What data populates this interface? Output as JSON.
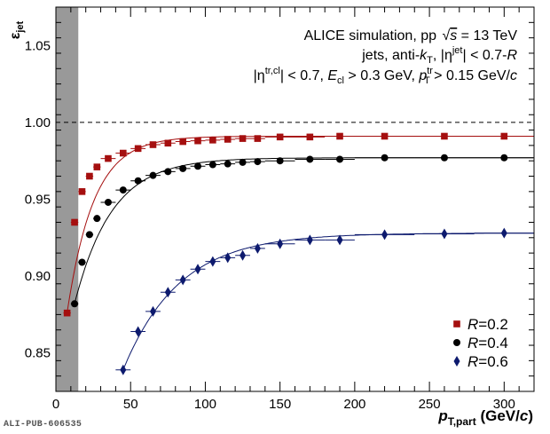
{
  "figure_tag": "ALI-PUB-606535",
  "annotations": {
    "line1": "ALICE simulation, pp √s = 13 TeV",
    "line2": "jets, anti-kT, |ηjet| < 0.7-R",
    "line3": "|ηtr,cl| < 0.7, Ecl > 0.3 GeV, pTtr > 0.15 GeV/c"
  },
  "chart_data": {
    "type": "scatter",
    "ylabel": "εjet",
    "xlabel": "pT,part (GeV/c)",
    "xlim": [
      0,
      320
    ],
    "ylim": [
      0.825,
      1.075
    ],
    "x_ticks": [
      0,
      50,
      100,
      150,
      200,
      250,
      300
    ],
    "y_ticks": [
      0.85,
      0.9,
      0.95,
      1.0,
      1.05
    ],
    "y_tick_labels": [
      "0.85",
      "0.90",
      "0.95",
      "1.00",
      "1.05"
    ],
    "reference_line": 1.0,
    "shaded_region": [
      0,
      15
    ],
    "legend_position": "bottom-right",
    "series": [
      {
        "name": "R=0.2",
        "marker": "square",
        "color": "#a50f0f",
        "x": [
          7.5,
          12.5,
          17.5,
          22.5,
          27.5,
          35,
          45,
          55,
          65,
          75,
          85,
          95,
          105,
          115,
          125,
          135,
          150,
          170,
          190,
          220,
          260,
          300
        ],
        "x_halfwidth": [
          2.5,
          2.5,
          2.5,
          2.5,
          2.5,
          5,
          5,
          5,
          5,
          5,
          5,
          5,
          5,
          5,
          5,
          5,
          10,
          10,
          10,
          20,
          20,
          20
        ],
        "y": [
          0.876,
          0.935,
          0.955,
          0.965,
          0.971,
          0.9765,
          0.98,
          0.983,
          0.9855,
          0.9865,
          0.9875,
          0.988,
          0.9885,
          0.989,
          0.9895,
          0.9895,
          0.9905,
          0.9905,
          0.991,
          0.991,
          0.991,
          0.991
        ],
        "fit": true
      },
      {
        "name": "R=0.4",
        "marker": "circle",
        "color": "#000000",
        "x": [
          12.5,
          17.5,
          22.5,
          27.5,
          35,
          45,
          55,
          65,
          75,
          85,
          95,
          105,
          115,
          125,
          135,
          150,
          170,
          190,
          220,
          260,
          300
        ],
        "x_halfwidth": [
          2.5,
          2.5,
          2.5,
          2.5,
          5,
          5,
          5,
          5,
          5,
          5,
          5,
          5,
          5,
          5,
          5,
          10,
          10,
          10,
          20,
          20,
          20
        ],
        "y": [
          0.882,
          0.909,
          0.927,
          0.9375,
          0.948,
          0.956,
          0.962,
          0.9655,
          0.968,
          0.97,
          0.9715,
          0.9725,
          0.973,
          0.974,
          0.9745,
          0.975,
          0.976,
          0.976,
          0.977,
          0.977,
          0.977
        ],
        "fit": true
      },
      {
        "name": "R=0.6",
        "marker": "diamond",
        "color": "#0d1a6e",
        "x": [
          45,
          55,
          65,
          75,
          85,
          95,
          105,
          115,
          125,
          135,
          150,
          170,
          190,
          220,
          260,
          300
        ],
        "x_halfwidth": [
          5,
          5,
          5,
          5,
          5,
          5,
          5,
          5,
          5,
          5,
          10,
          10,
          10,
          20,
          20,
          20
        ],
        "y": [
          0.839,
          0.864,
          0.877,
          0.8895,
          0.8975,
          0.9045,
          0.9095,
          0.912,
          0.9135,
          0.918,
          0.921,
          0.9235,
          0.9235,
          0.927,
          0.9275,
          0.928
        ],
        "fit": true
      }
    ]
  }
}
